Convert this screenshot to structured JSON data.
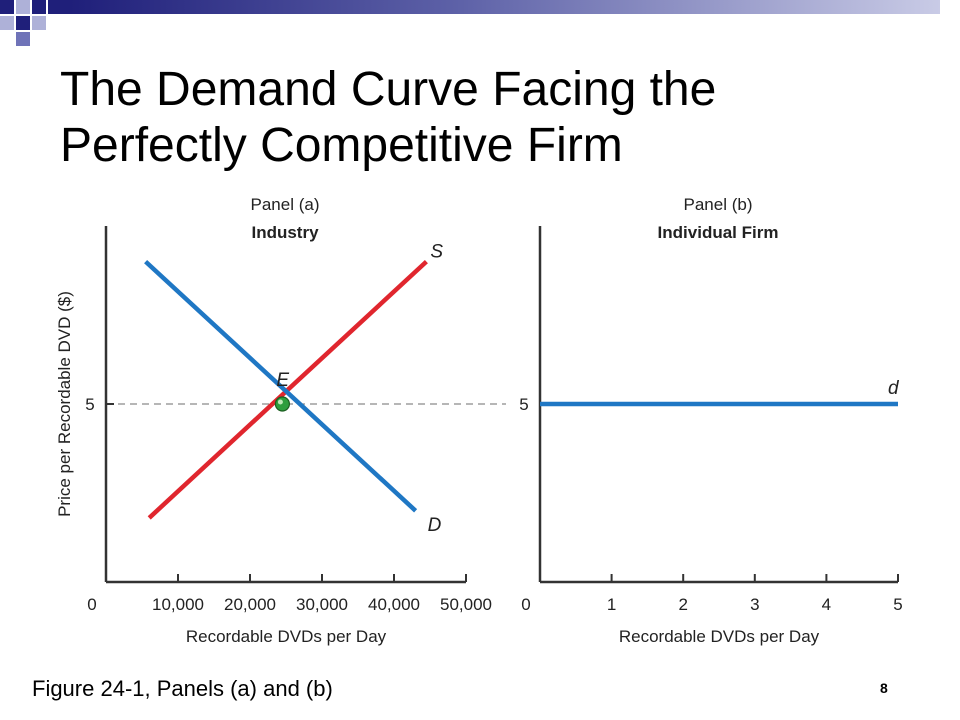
{
  "slide": {
    "title_line1": "The Demand Curve Facing the",
    "title_line2": "Perfectly Competitive Firm",
    "caption": "Figure 24-1, Panels (a) and (b)",
    "page_number": "8",
    "colors": {
      "deco_dark": "#1f1f7a",
      "deco_light": "#aeb1d8",
      "deco_mid": "#6f73b8"
    }
  },
  "chart_data": [
    {
      "type": "line",
      "panel_label": "Panel (a)",
      "subtitle": "Industry",
      "ylabel": "Price per Recordable DVD ($)",
      "xlabel": "Recordable DVDs per Day",
      "xlim": [
        0,
        50000
      ],
      "x_ticks": [
        0,
        10000,
        20000,
        30000,
        40000,
        50000
      ],
      "x_tick_labels": [
        "0",
        "10,000",
        "20,000",
        "30,000",
        "40,000",
        "50,000"
      ],
      "y_ticks": [
        5
      ],
      "y_tick_labels": [
        "5"
      ],
      "ylim": [
        0,
        10
      ],
      "series": [
        {
          "name": "S",
          "color": "#e0262e",
          "x": [
            6000,
            44500
          ],
          "y": [
            1.8,
            9.0
          ]
        },
        {
          "name": "D",
          "color": "#1f77c4",
          "x": [
            5500,
            43000
          ],
          "y": [
            9.0,
            2.0
          ]
        }
      ],
      "equilibrium": {
        "label": "E",
        "x": 24500,
        "y": 5,
        "color": "#2e9e3e"
      },
      "reference_line": {
        "y": 5,
        "style": "dashed"
      }
    },
    {
      "type": "line",
      "panel_label": "Panel (b)",
      "subtitle": "Individual Firm",
      "ylabel": "",
      "xlabel": "Recordable DVDs per Day",
      "xlim": [
        0,
        5
      ],
      "x_ticks": [
        0,
        1,
        2,
        3,
        4,
        5
      ],
      "x_tick_labels": [
        "0",
        "1",
        "2",
        "3",
        "4",
        "5"
      ],
      "y_ticks": [
        5
      ],
      "y_tick_labels": [
        "5"
      ],
      "ylim": [
        0,
        10
      ],
      "series": [
        {
          "name": "d",
          "color": "#1f77c4",
          "x": [
            0,
            5
          ],
          "y": [
            5,
            5
          ]
        }
      ]
    }
  ]
}
